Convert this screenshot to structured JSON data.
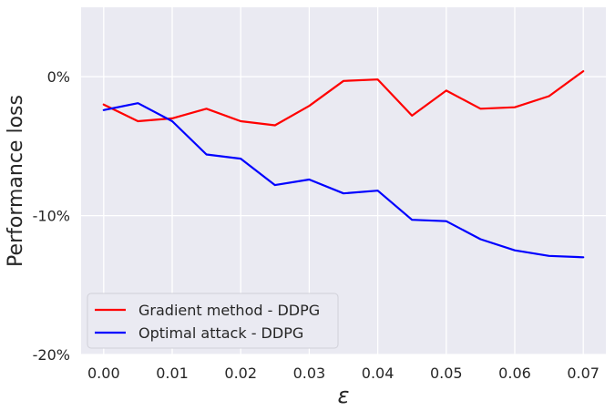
{
  "chart_data": {
    "type": "line",
    "xlabel": "ε",
    "ylabel": "Performance loss",
    "x": [
      0.0,
      0.005,
      0.01,
      0.015,
      0.02,
      0.025,
      0.03,
      0.035,
      0.04,
      0.045,
      0.05,
      0.055,
      0.06,
      0.065,
      0.07
    ],
    "series": [
      {
        "name": "Gradient method - DDPG",
        "color": "#ff0000",
        "values": [
          -2.0,
          -3.2,
          -3.0,
          -2.3,
          -3.2,
          -3.5,
          -2.1,
          -0.3,
          -0.2,
          -2.8,
          -1.0,
          -2.3,
          -2.2,
          -1.4,
          0.4
        ]
      },
      {
        "name": "Optimal attack - DDPG",
        "color": "#0000ff",
        "values": [
          -2.4,
          -1.9,
          -3.2,
          -5.6,
          -5.9,
          -7.8,
          -7.4,
          -8.4,
          -8.2,
          -10.3,
          -10.4,
          -11.7,
          -12.5,
          -12.9,
          -13.0
        ]
      }
    ],
    "xlim": [
      -0.0033,
      0.0733
    ],
    "ylim": [
      -20,
      5
    ],
    "xticks": [
      0.0,
      0.01,
      0.02,
      0.03,
      0.04,
      0.05,
      0.06,
      0.07
    ],
    "xtick_labels": [
      "0.00",
      "0.01",
      "0.02",
      "0.03",
      "0.04",
      "0.05",
      "0.06",
      "0.07"
    ],
    "yticks": [
      0,
      -10,
      -20
    ],
    "ytick_labels": [
      "0%",
      "-10%",
      "-20%"
    ],
    "grid": true,
    "legend_position": "lower-left",
    "background": "#eaeaf2",
    "grid_color": "#ffffff"
  }
}
